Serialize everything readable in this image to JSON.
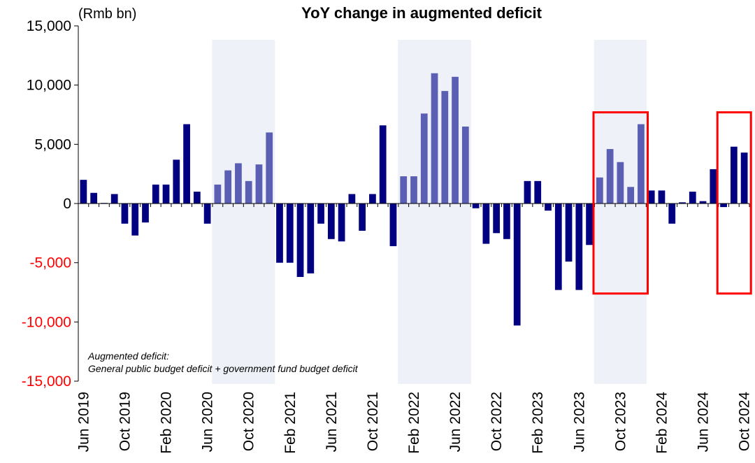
{
  "chart_data": {
    "type": "bar",
    "title": "YoY change in augmented deficit",
    "unit_label": "(Rmb bn)",
    "note_lines": [
      "Augmented deficit:",
      "General public budget deficit + government fund budget deficit"
    ],
    "ylim": [
      -15000,
      15000
    ],
    "yticks": [
      15000,
      10000,
      5000,
      0,
      -5000,
      -10000,
      -15000
    ],
    "ytick_labels": [
      "15,000",
      "10,000",
      "5,000",
      "0",
      "-5,000",
      "-10,000",
      "-15,000"
    ],
    "negative_tick_color": "#ff0000",
    "x_tick_labels": [
      {
        "label": "Jun 2019",
        "index": 0
      },
      {
        "label": "Oct 2019",
        "index": 4
      },
      {
        "label": "Feb 2020",
        "index": 8
      },
      {
        "label": "Jun 2020",
        "index": 12
      },
      {
        "label": "Oct 2020",
        "index": 16
      },
      {
        "label": "Feb 2021",
        "index": 20
      },
      {
        "label": "Jun 2021",
        "index": 24
      },
      {
        "label": "Oct 2021",
        "index": 28
      },
      {
        "label": "Feb 2022",
        "index": 32
      },
      {
        "label": "Jun 2022",
        "index": 36
      },
      {
        "label": "Oct 2022",
        "index": 40
      },
      {
        "label": "Feb 2023",
        "index": 44
      },
      {
        "label": "Jun 2023",
        "index": 48
      },
      {
        "label": "Oct 2023",
        "index": 52
      },
      {
        "label": "Feb 2024",
        "index": 56
      },
      {
        "label": "Jun 2024",
        "index": 60
      },
      {
        "label": "Oct 2024",
        "index": 64
      }
    ],
    "values": [
      2000,
      900,
      50,
      800,
      -1700,
      -2700,
      -1600,
      1600,
      1600,
      3700,
      6700,
      1000,
      -1700,
      1600,
      2800,
      3400,
      1900,
      3300,
      6000,
      -5000,
      -5000,
      -6200,
      -5900,
      -1700,
      -3000,
      -3200,
      800,
      -2300,
      800,
      6600,
      -3600,
      2300,
      2300,
      7600,
      11000,
      9500,
      10700,
      6500,
      -400,
      -3400,
      -2500,
      -3000,
      -10300,
      1900,
      1900,
      -600,
      -7300,
      -4900,
      -7300,
      -3500,
      2200,
      4600,
      3500,
      1400,
      6700,
      1100,
      1100,
      -1700,
      100,
      1000,
      200,
      2900,
      -300,
      4800,
      4300
    ],
    "highlighted_indices": [
      13,
      14,
      15,
      16,
      17,
      18,
      31,
      32,
      33,
      34,
      35,
      36,
      37,
      50,
      51,
      52,
      53,
      54
    ],
    "shaded_ranges": [
      [
        13,
        18
      ],
      [
        31,
        37
      ],
      [
        50,
        54
      ]
    ],
    "boxed_ranges": [
      [
        50,
        54
      ],
      [
        62,
        64
      ]
    ],
    "colors": {
      "bar": "#000080",
      "bar_highlight": "#5b5fb4",
      "shade": "#eef2f8",
      "box": "#ff0000",
      "axis": "#000000"
    },
    "grid": false
  }
}
